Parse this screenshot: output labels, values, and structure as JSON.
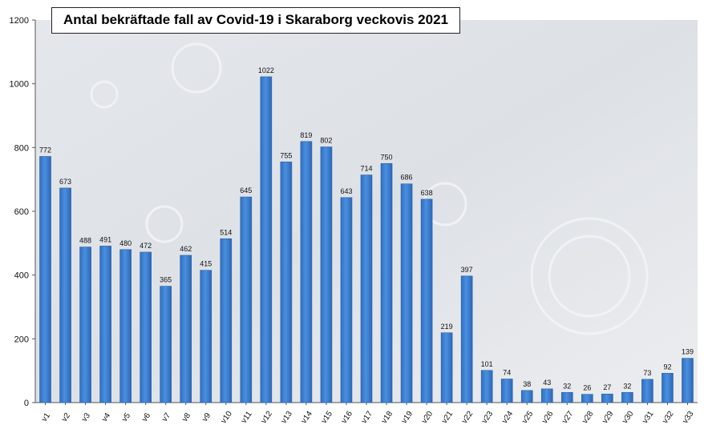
{
  "chart_data": {
    "type": "bar",
    "title": "Antal bekräftade fall av Covid-19 i Skaraborg veckovis 2021",
    "xlabel": "",
    "ylabel": "",
    "ylim": [
      0,
      1200
    ],
    "yticks": [
      0,
      200,
      400,
      600,
      800,
      1000,
      1200
    ],
    "grid": false,
    "legend": "none",
    "bar_color": "#3f83d4",
    "categories": [
      "v1",
      "v2",
      "v3",
      "v4",
      "v5",
      "v6",
      "v7",
      "v8",
      "v9",
      "v10",
      "v11",
      "v12",
      "v13",
      "v14",
      "v15",
      "v16",
      "v17",
      "v18",
      "v19",
      "v20",
      "v21",
      "v22",
      "v23",
      "v24",
      "v25",
      "v26",
      "v27",
      "v28",
      "v29",
      "v30",
      "v31",
      "v32",
      "v33"
    ],
    "values": [
      772,
      673,
      488,
      491,
      480,
      472,
      365,
      462,
      415,
      514,
      645,
      1022,
      755,
      819,
      802,
      643,
      714,
      750,
      686,
      638,
      219,
      397,
      101,
      74,
      38,
      43,
      32,
      26,
      27,
      32,
      73,
      92,
      139
    ],
    "data_labels": true
  }
}
